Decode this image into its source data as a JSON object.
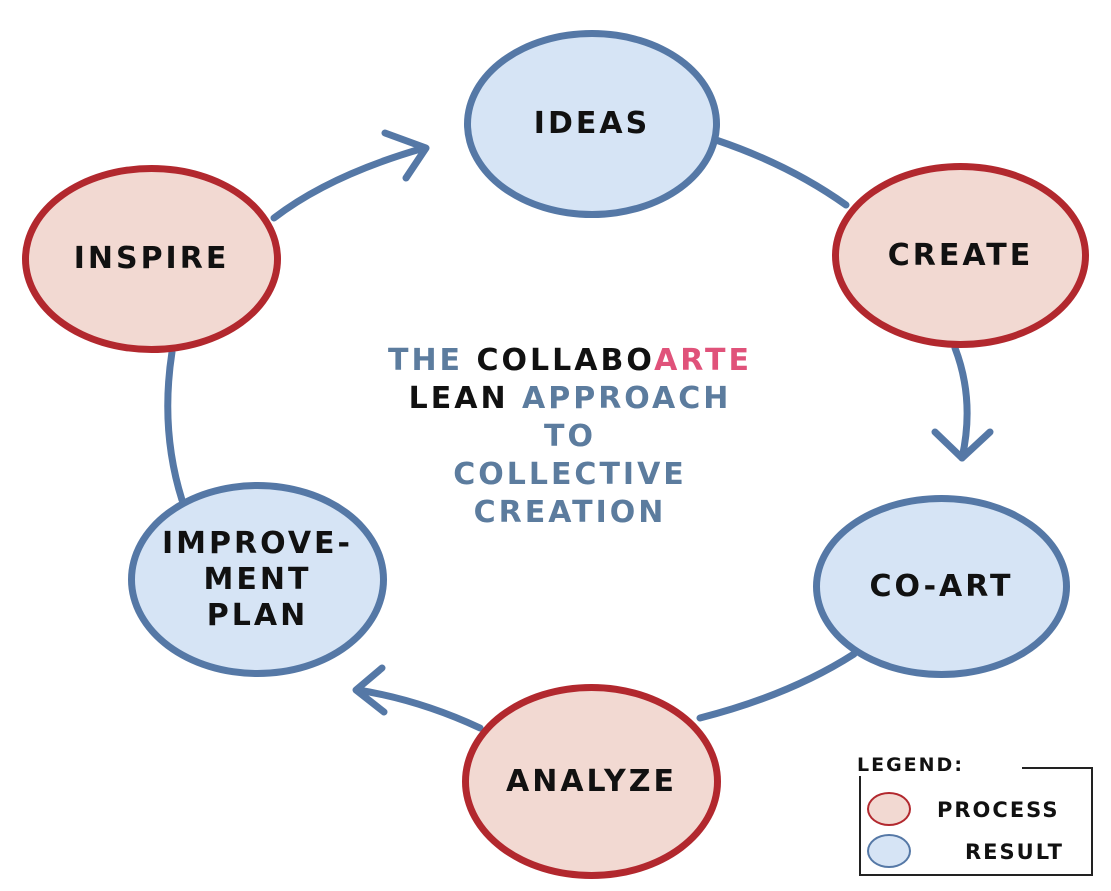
{
  "diagram": {
    "nodes": [
      {
        "id": "ideas",
        "label": "IDEAS",
        "kind": "result"
      },
      {
        "id": "create",
        "label": "CREATE",
        "kind": "process"
      },
      {
        "id": "coart",
        "label": "CO-ART",
        "kind": "result"
      },
      {
        "id": "analyze",
        "label": "ANALYZE",
        "kind": "process"
      },
      {
        "id": "improve",
        "label": "IMPROVE-\nMENT\nPLAN",
        "kind": "result"
      },
      {
        "id": "inspire",
        "label": "INSPIRE",
        "kind": "process"
      }
    ],
    "center": {
      "word_the": "THE",
      "word_collabo": "COLLABO",
      "word_arte": "ARTE",
      "word_lean": "LEAN",
      "word_approach": "APPROACH",
      "line_to": "TO",
      "line_collective": "COLLECTIVE",
      "line_creation": "CREATION"
    }
  },
  "legend": {
    "title": "LEGEND:",
    "process_label": "PROCESS",
    "result_label": "RESULT"
  },
  "colors": {
    "process_fill": "#f2d9d2",
    "process_border": "#b2282e",
    "result_fill": "#d6e4f5",
    "result_border": "#5578a6",
    "connector": "#5578a6",
    "title_blue": "#5c7c9e",
    "title_pink": "#e0527a"
  }
}
